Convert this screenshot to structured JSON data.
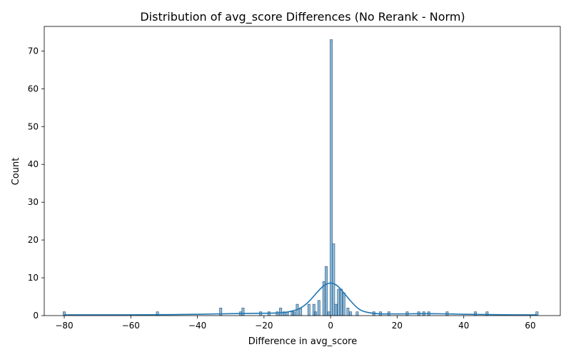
{
  "chart_data": {
    "type": "histogram",
    "title": "Distribution of avg_score Differences (No Rerank - Norm)",
    "xlabel": "Difference in avg_score",
    "ylabel": "Count",
    "xlim": [
      -86,
      69
    ],
    "ylim": [
      0,
      76.5
    ],
    "xticks": [
      -80,
      -60,
      -40,
      -20,
      0,
      20,
      40,
      60
    ],
    "yticks": [
      0,
      10,
      20,
      30,
      40,
      50,
      60,
      70
    ],
    "grid": false,
    "color": "#1f77b4",
    "bin_width": 0.7,
    "bins": [
      {
        "x": -80.0,
        "count": 1
      },
      {
        "x": -52.0,
        "count": 1
      },
      {
        "x": -33.0,
        "count": 2
      },
      {
        "x": -27.0,
        "count": 1
      },
      {
        "x": -26.3,
        "count": 2
      },
      {
        "x": -21.0,
        "count": 1
      },
      {
        "x": -18.5,
        "count": 1
      },
      {
        "x": -16.0,
        "count": 1
      },
      {
        "x": -15.0,
        "count": 2
      },
      {
        "x": -14.0,
        "count": 1
      },
      {
        "x": -13.0,
        "count": 1
      },
      {
        "x": -11.5,
        "count": 1
      },
      {
        "x": -11.0,
        "count": 1
      },
      {
        "x": -10.0,
        "count": 3
      },
      {
        "x": -9.0,
        "count": 2
      },
      {
        "x": -6.5,
        "count": 3
      },
      {
        "x": -5.0,
        "count": 3
      },
      {
        "x": -4.5,
        "count": 1
      },
      {
        "x": -3.5,
        "count": 4
      },
      {
        "x": -2.0,
        "count": 9
      },
      {
        "x": -1.3,
        "count": 13
      },
      {
        "x": -0.5,
        "count": 1
      },
      {
        "x": 0.2,
        "count": 73
      },
      {
        "x": 0.9,
        "count": 19
      },
      {
        "x": 1.6,
        "count": 3
      },
      {
        "x": 2.4,
        "count": 7
      },
      {
        "x": 3.2,
        "count": 7
      },
      {
        "x": 4.0,
        "count": 6
      },
      {
        "x": 5.2,
        "count": 2
      },
      {
        "x": 6.0,
        "count": 1
      },
      {
        "x": 8.0,
        "count": 1
      },
      {
        "x": 13.0,
        "count": 1
      },
      {
        "x": 15.0,
        "count": 1
      },
      {
        "x": 17.5,
        "count": 1
      },
      {
        "x": 23.0,
        "count": 1
      },
      {
        "x": 26.5,
        "count": 1
      },
      {
        "x": 28.0,
        "count": 1
      },
      {
        "x": 29.5,
        "count": 1
      },
      {
        "x": 35.0,
        "count": 1
      },
      {
        "x": 43.5,
        "count": 1
      },
      {
        "x": 47.0,
        "count": 1
      },
      {
        "x": 62.0,
        "count": 1
      }
    ],
    "kde": {
      "x": [
        -80,
        -70,
        -60,
        -50,
        -40,
        -34,
        -30,
        -26,
        -22,
        -18,
        -14,
        -10,
        -8,
        -6,
        -4,
        -2,
        0,
        2,
        4,
        6,
        8,
        10,
        14,
        18,
        22,
        26,
        30,
        35,
        40,
        45,
        50,
        55,
        62
      ],
      "y": [
        0.2,
        0.2,
        0.2,
        0.25,
        0.35,
        0.45,
        0.5,
        0.55,
        0.6,
        0.65,
        0.8,
        1.6,
        2.6,
        4.2,
        6.2,
        7.9,
        8.6,
        7.9,
        6.0,
        3.9,
        2.1,
        1.1,
        0.5,
        0.45,
        0.45,
        0.5,
        0.5,
        0.45,
        0.35,
        0.3,
        0.25,
        0.2,
        0.2
      ]
    }
  }
}
